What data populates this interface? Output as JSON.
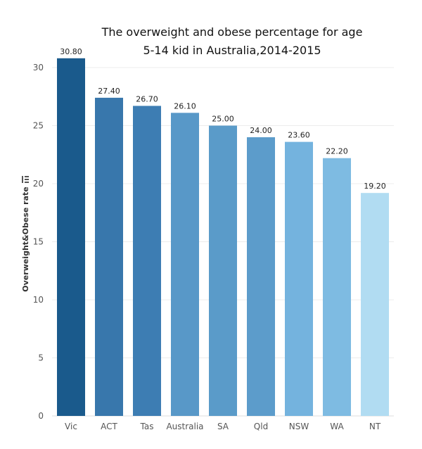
{
  "chart_data": {
    "type": "bar",
    "title_line1": "The overweight and obese percentage for age",
    "title_line2": "5-14 kid in Australia,2014-2015",
    "xlabel": "",
    "ylabel": "Overweight&Obese rate",
    "ylabel_icon": "filter-icon",
    "ylim": [
      0,
      32
    ],
    "yticks": [
      "0",
      "5",
      "10",
      "15",
      "20",
      "25",
      "30"
    ],
    "grid": true,
    "legend": "none",
    "categories": [
      "Vic",
      "ACT",
      "Tas",
      "Australia",
      "SA",
      "Qld",
      "NSW",
      "WA",
      "NT"
    ],
    "values": [
      30.8,
      27.4,
      26.7,
      26.1,
      25.0,
      24.0,
      23.6,
      22.2,
      19.2
    ],
    "value_labels": [
      "30.80",
      "27.40",
      "26.70",
      "26.10",
      "25.00",
      "24.00",
      "23.60",
      "22.20",
      "19.20"
    ],
    "colors": [
      "#1a5a8c",
      "#3877ac",
      "#3d7db3",
      "#5898c8",
      "#5a9bc9",
      "#5c9ccb",
      "#74b3de",
      "#7ebbe2",
      "#b1dcf2"
    ]
  }
}
